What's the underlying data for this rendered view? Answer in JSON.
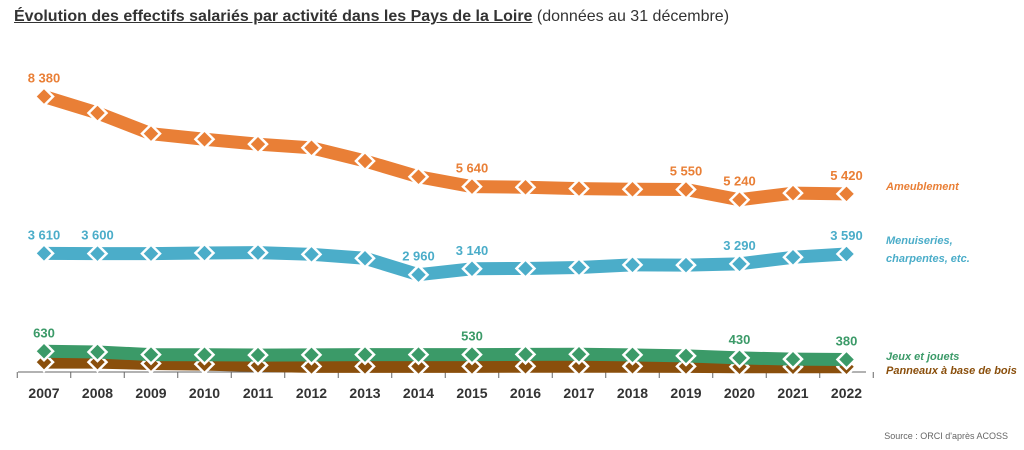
{
  "title": {
    "main": "Évolution des effectifs salariés par activité dans les Pays de la Loire",
    "sub": "(données au 31 décembre)"
  },
  "source": "Source : ORCI d'après ACOSS",
  "chart_data": {
    "type": "line",
    "x": [
      "2007",
      "2008",
      "2009",
      "2010",
      "2011",
      "2012",
      "2013",
      "2014",
      "2015",
      "2016",
      "2017",
      "2018",
      "2019",
      "2020",
      "2021",
      "2022"
    ],
    "series": [
      {
        "name": "Ameublement",
        "color": "#e97f36",
        "values": [
          8380,
          7880,
          7250,
          7080,
          6930,
          6820,
          6420,
          5940,
          5640,
          5620,
          5580,
          5560,
          5550,
          5240,
          5440,
          5420
        ],
        "labels": {
          "0": "8 380",
          "8": "5 640",
          "12": "5 550",
          "13": "5 240",
          "15": "5 420"
        }
      },
      {
        "name": "Menuiseries, charpentes, etc.",
        "color": "#4badc9",
        "values": [
          3610,
          3600,
          3600,
          3620,
          3630,
          3580,
          3460,
          2960,
          3140,
          3150,
          3180,
          3260,
          3250,
          3290,
          3490,
          3590
        ],
        "labels": {
          "0": "3 610",
          "1": "3 600",
          "7": "2 960",
          "8": "3 140",
          "13": "3 290",
          "15": "3 590"
        }
      },
      {
        "name": "Jeux et jouets",
        "color": "#3b9a68",
        "values": [
          630,
          610,
          530,
          525,
          515,
          520,
          530,
          530,
          530,
          535,
          540,
          520,
          490,
          430,
          390,
          380
        ],
        "labels": {
          "0": "630",
          "8": "530",
          "13": "430",
          "15": "380"
        }
      },
      {
        "name": "Panneaux à base de bois",
        "color": "#8a4f0c",
        "values": [
          300,
          300,
          260,
          240,
          200,
          170,
          170,
          170,
          170,
          175,
          175,
          175,
          170,
          160,
          160,
          160
        ],
        "labels": {}
      }
    ],
    "ylim": [
      0,
      8700
    ],
    "grid": false,
    "legend": "right, inline at series end"
  }
}
